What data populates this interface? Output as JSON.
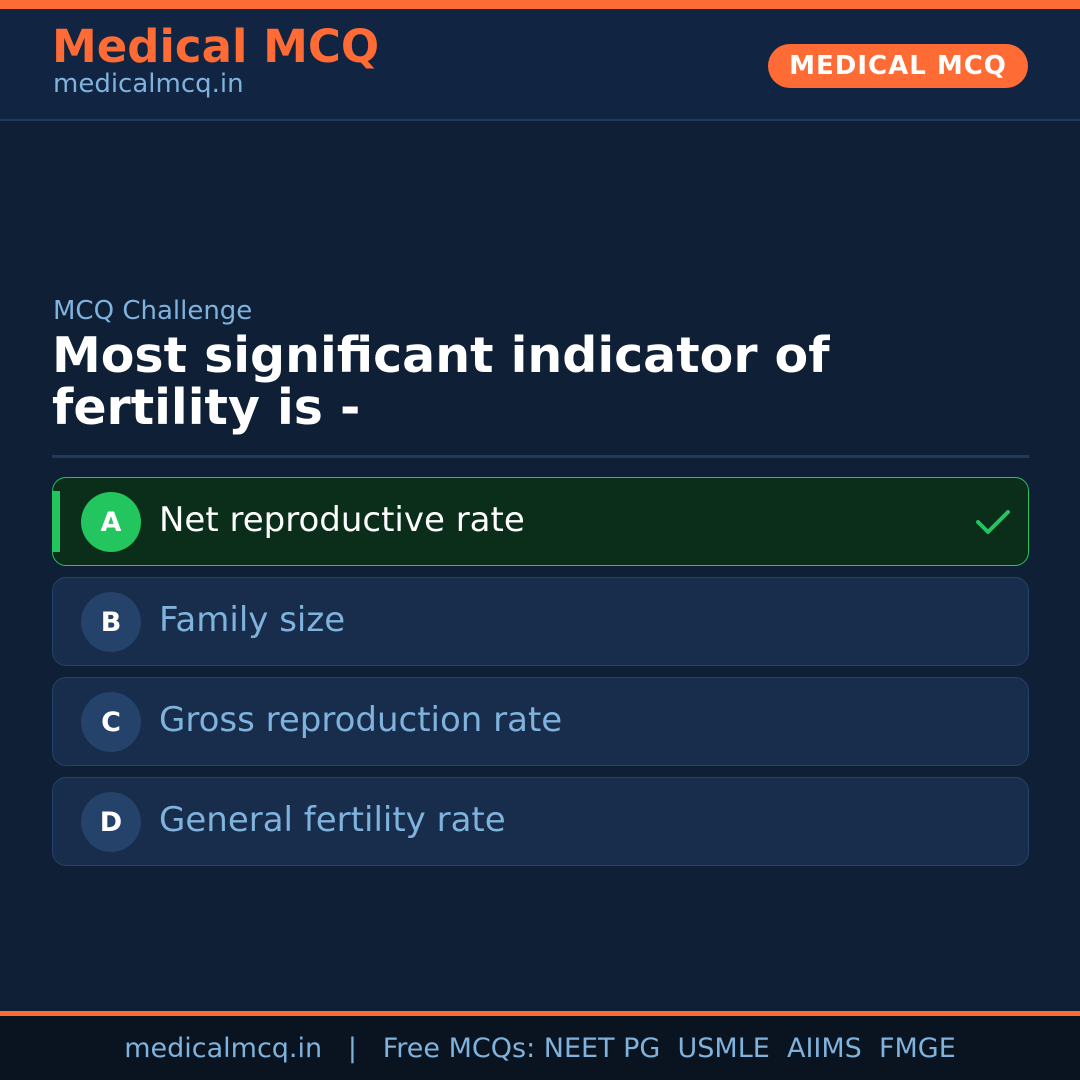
{
  "header": {
    "brand_title": "Medical MCQ",
    "brand_url": "medicalmcq.in",
    "badge": "MEDICAL MCQ"
  },
  "question": {
    "eyebrow": "MCQ Challenge",
    "text": "Most significant indicator of fertility is -"
  },
  "options": [
    {
      "letter": "A",
      "text": "Net reproductive rate",
      "correct": true
    },
    {
      "letter": "B",
      "text": "Family size",
      "correct": false
    },
    {
      "letter": "C",
      "text": "Gross reproduction rate",
      "correct": false
    },
    {
      "letter": "D",
      "text": "General fertility rate",
      "correct": false
    }
  ],
  "footer": {
    "text": "medicalmcq.in   |   Free MCQs: NEET PG  USMLE  AIIMS  FMGE"
  },
  "colors": {
    "accent": "#ff6b35",
    "correct": "#22c55e",
    "background": "#0e1f36",
    "muted_text": "#7fb2dc"
  },
  "icons": {
    "correct_marker": "check-icon"
  }
}
